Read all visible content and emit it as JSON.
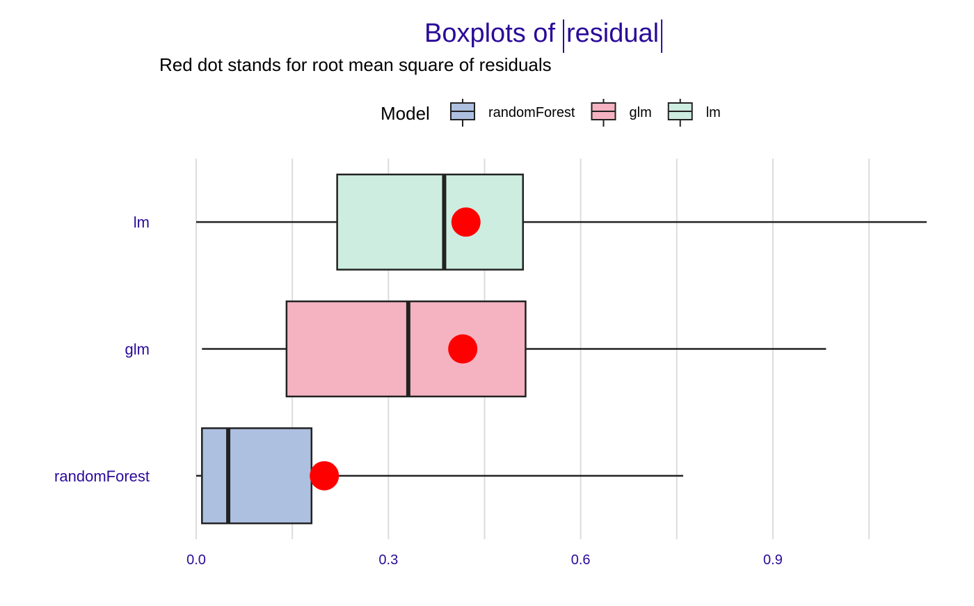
{
  "chart_data": {
    "type": "boxplot",
    "title": "Boxplots of |residual|",
    "title_parts": {
      "prefix": "Boxplots of",
      "inner": "residual"
    },
    "subtitle": "Red dot stands for root mean square of residuals",
    "xlabel": "",
    "ylabel": "",
    "xlim": [
      0,
      1.14
    ],
    "x_ticks": [
      "0.0",
      "0.3",
      "0.6",
      "0.9"
    ],
    "x_tick_values": [
      0.0,
      0.3,
      0.6,
      0.9
    ],
    "x_grid_values": [
      0.0,
      0.15,
      0.3,
      0.45,
      0.6,
      0.75,
      0.9,
      1.05
    ],
    "grid": true,
    "legend": {
      "title": "Model",
      "position": "top",
      "items": [
        {
          "label": "randomForest",
          "color": "#aec0e0"
        },
        {
          "label": "glm",
          "color": "#f5b3c2"
        },
        {
          "label": "lm",
          "color": "#ccede0"
        }
      ]
    },
    "categories": [
      "lm",
      "glm",
      "randomForest"
    ],
    "series": [
      {
        "name": "lm",
        "color": "#ccede0",
        "whisker_low": 0.0,
        "q1": 0.22,
        "median": 0.387,
        "q3": 0.51,
        "whisker_high": 1.14,
        "rmse": 0.421
      },
      {
        "name": "glm",
        "color": "#f5b3c2",
        "whisker_low": 0.009,
        "q1": 0.141,
        "median": 0.331,
        "q3": 0.514,
        "whisker_high": 0.983,
        "rmse": 0.416
      },
      {
        "name": "randomForest",
        "color": "#aec0e0",
        "whisker_low": 0.0,
        "q1": 0.009,
        "median": 0.05,
        "q3": 0.18,
        "whisker_high": 0.76,
        "rmse": 0.2
      }
    ],
    "rmse_color": "#ff0000",
    "accent_text_color": "#2a0a99"
  }
}
